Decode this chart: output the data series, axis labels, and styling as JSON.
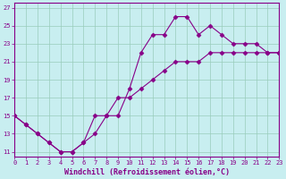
{
  "xlabel": "Windchill (Refroidissement éolien,°C)",
  "xlim": [
    0,
    23
  ],
  "ylim": [
    10.5,
    27.5
  ],
  "xticks": [
    0,
    1,
    2,
    3,
    4,
    5,
    6,
    7,
    8,
    9,
    10,
    11,
    12,
    13,
    14,
    15,
    16,
    17,
    18,
    19,
    20,
    21,
    22,
    23
  ],
  "yticks": [
    11,
    13,
    15,
    17,
    19,
    21,
    23,
    25,
    27
  ],
  "bg_color": "#c8eef0",
  "line_color": "#880088",
  "line1_x": [
    0,
    1,
    2,
    3,
    4,
    5,
    6,
    7,
    8,
    9,
    10,
    11,
    12,
    13,
    14,
    15,
    16,
    17,
    18,
    19,
    20,
    21,
    22,
    23
  ],
  "line1_y": [
    15,
    14,
    13,
    12,
    11,
    11,
    12,
    13,
    15,
    15,
    18,
    22,
    24,
    24,
    26,
    26,
    24,
    25,
    24,
    23,
    23,
    23,
    22,
    22
  ],
  "line2_x": [
    0,
    1,
    2,
    3,
    4,
    5,
    6,
    7,
    8,
    9,
    10,
    11,
    12,
    13,
    14,
    15,
    16,
    17,
    18,
    19,
    20,
    21,
    22,
    23
  ],
  "line2_y": [
    15,
    14,
    13,
    12,
    11,
    11,
    12,
    15,
    15,
    17,
    17,
    18,
    19,
    20,
    21,
    21,
    21,
    22,
    22,
    22,
    22,
    22,
    22,
    22
  ],
  "grid_color": "#99ccbb",
  "marker": "D",
  "markersize": 2.5,
  "linewidth": 0.8,
  "tick_fontsize": 5,
  "xlabel_fontsize": 6
}
